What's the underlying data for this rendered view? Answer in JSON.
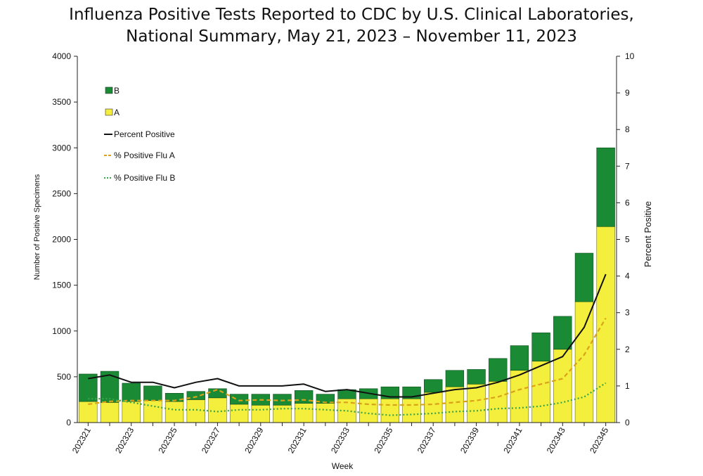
{
  "chart_data": {
    "type": "bar",
    "title_line1": "Influenza Positive Tests Reported to CDC by U.S. Clinical Laboratories,",
    "title_line2": "National Summary, May 21, 2023 – November 11, 2023",
    "xlabel": "Week",
    "ylabel": "Number of Positive Specimens",
    "y2label": "Percent Positive",
    "ylim": [
      0,
      4000
    ],
    "y2lim": [
      0,
      10
    ],
    "yticks": [
      "0",
      "500",
      "1000",
      "1500",
      "2000",
      "2500",
      "3000",
      "3500",
      "4000"
    ],
    "y2ticks": [
      "0",
      "1",
      "2",
      "3",
      "4",
      "5",
      "6",
      "7",
      "8",
      "9",
      "10"
    ],
    "categories": [
      "202321",
      "202322",
      "202323",
      "202324",
      "202325",
      "202326",
      "202327",
      "202328",
      "202329",
      "202330",
      "202331",
      "202332",
      "202333",
      "202334",
      "202335",
      "202336",
      "202337",
      "202338",
      "202339",
      "202340",
      "202341",
      "202342",
      "202343",
      "202344",
      "202345"
    ],
    "xtick_labels": [
      "202321",
      "",
      "202323",
      "",
      "202325",
      "",
      "202327",
      "",
      "202329",
      "",
      "202331",
      "",
      "202333",
      "",
      "202335",
      "",
      "202337",
      "",
      "202339",
      "",
      "202341",
      "",
      "202343",
      "",
      "202345"
    ],
    "bar_series": [
      {
        "name": "B",
        "color": "#1a8a35",
        "values": [
          300,
          340,
          200,
          160,
          90,
          90,
          100,
          110,
          120,
          120,
          140,
          100,
          100,
          110,
          130,
          130,
          140,
          180,
          160,
          250,
          270,
          310,
          360,
          530,
          860
        ]
      },
      {
        "name": "A",
        "color": "#f4ee3c",
        "values": [
          230,
          220,
          230,
          240,
          230,
          250,
          270,
          200,
          190,
          190,
          210,
          210,
          260,
          260,
          260,
          260,
          330,
          390,
          420,
          450,
          570,
          670,
          800,
          1320,
          2140
        ]
      }
    ],
    "line_series": [
      {
        "name": "Percent Positive",
        "color": "#111111",
        "style": "solid",
        "values": [
          1.2,
          1.3,
          1.1,
          1.1,
          0.95,
          1.1,
          1.2,
          1.0,
          1.0,
          1.0,
          1.05,
          0.85,
          0.9,
          0.8,
          0.7,
          0.7,
          0.8,
          0.9,
          0.95,
          1.1,
          1.3,
          1.55,
          1.8,
          2.6,
          4.05
        ]
      },
      {
        "name": "% Positive Flu A",
        "color": "#d9a21b",
        "style": "dashed",
        "values": [
          0.5,
          0.58,
          0.6,
          0.6,
          0.6,
          0.7,
          0.9,
          0.6,
          0.62,
          0.6,
          0.62,
          0.55,
          0.55,
          0.5,
          0.48,
          0.48,
          0.5,
          0.55,
          0.6,
          0.7,
          0.9,
          1.05,
          1.2,
          1.85,
          2.85
        ]
      },
      {
        "name": "% Positive Flu B",
        "color": "#3aa34a",
        "style": "dotted",
        "values": [
          0.65,
          0.65,
          0.55,
          0.45,
          0.35,
          0.35,
          0.3,
          0.35,
          0.35,
          0.38,
          0.38,
          0.35,
          0.32,
          0.25,
          0.2,
          0.22,
          0.25,
          0.3,
          0.32,
          0.38,
          0.4,
          0.45,
          0.55,
          0.7,
          1.08
        ]
      }
    ],
    "legend": {
      "placement": "top-left",
      "order": [
        "B",
        "A",
        "Percent Positive",
        "% Positive Flu A",
        "% Positive Flu B"
      ]
    },
    "grid": false
  }
}
